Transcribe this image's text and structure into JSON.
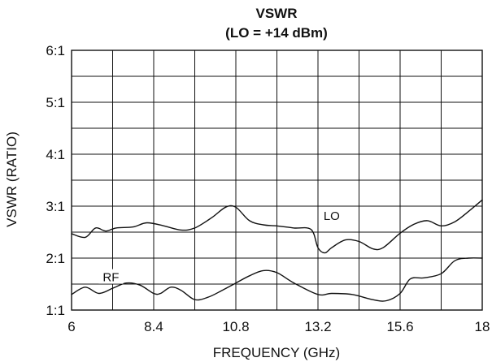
{
  "chart_data": {
    "type": "line",
    "title": [
      "VSWR",
      "(LO = +14 dBm)"
    ],
    "xlabel": "FREQUENCY (GHz)",
    "ylabel": "VSWR (RATIO)",
    "xlim": [
      6,
      18
    ],
    "ylim": [
      1,
      6
    ],
    "x_ticks": [
      6,
      7.2,
      8.4,
      9.6,
      10.8,
      12,
      13.2,
      14.4,
      15.6,
      16.8,
      18
    ],
    "x_tick_labels": [
      {
        "value": 6,
        "label": "6"
      },
      {
        "value": 8.4,
        "label": "8.4"
      },
      {
        "value": 10.8,
        "label": "10.8"
      },
      {
        "value": 13.2,
        "label": "13.2"
      },
      {
        "value": 15.6,
        "label": "15.6"
      },
      {
        "value": 18,
        "label": "18"
      }
    ],
    "y_ticks": [
      1,
      1.5,
      2,
      2.5,
      3,
      3.5,
      4,
      4.5,
      5,
      5.5,
      6
    ],
    "y_tick_labels": [
      {
        "value": 1,
        "label": "1:1"
      },
      {
        "value": 2,
        "label": "2:1"
      },
      {
        "value": 3,
        "label": "3:1"
      },
      {
        "value": 4,
        "label": "4:1"
      },
      {
        "value": 5,
        "label": "5:1"
      },
      {
        "value": 6,
        "label": "6:1"
      }
    ],
    "grid": true,
    "series": [
      {
        "name": "LO",
        "label_at": [
          13.6,
          2.78
        ],
        "points": [
          [
            6,
            2.47
          ],
          [
            6.4,
            2.4
          ],
          [
            6.7,
            2.58
          ],
          [
            7,
            2.52
          ],
          [
            7.3,
            2.58
          ],
          [
            7.8,
            2.6
          ],
          [
            8.2,
            2.68
          ],
          [
            8.7,
            2.62
          ],
          [
            9.2,
            2.54
          ],
          [
            9.6,
            2.58
          ],
          [
            10.1,
            2.78
          ],
          [
            10.5,
            2.98
          ],
          [
            10.8,
            2.98
          ],
          [
            11.2,
            2.72
          ],
          [
            11.6,
            2.64
          ],
          [
            12,
            2.62
          ],
          [
            12.5,
            2.58
          ],
          [
            13,
            2.55
          ],
          [
            13.2,
            2.2
          ],
          [
            13.4,
            2.1
          ],
          [
            13.6,
            2.2
          ],
          [
            14,
            2.35
          ],
          [
            14.4,
            2.32
          ],
          [
            14.8,
            2.18
          ],
          [
            15.1,
            2.2
          ],
          [
            15.6,
            2.48
          ],
          [
            16,
            2.65
          ],
          [
            16.4,
            2.72
          ],
          [
            16.8,
            2.62
          ],
          [
            17.2,
            2.7
          ],
          [
            17.6,
            2.9
          ],
          [
            18,
            3.12
          ]
        ]
      },
      {
        "name": "RF",
        "label_at": [
          7.15,
          1.6
        ],
        "points": [
          [
            6,
            1.3
          ],
          [
            6.4,
            1.44
          ],
          [
            6.8,
            1.32
          ],
          [
            7.2,
            1.42
          ],
          [
            7.6,
            1.52
          ],
          [
            8,
            1.48
          ],
          [
            8.4,
            1.32
          ],
          [
            8.6,
            1.32
          ],
          [
            8.9,
            1.44
          ],
          [
            9.2,
            1.38
          ],
          [
            9.6,
            1.2
          ],
          [
            10,
            1.25
          ],
          [
            10.4,
            1.38
          ],
          [
            10.8,
            1.52
          ],
          [
            11.2,
            1.66
          ],
          [
            11.6,
            1.76
          ],
          [
            12,
            1.72
          ],
          [
            12.5,
            1.52
          ],
          [
            13.2,
            1.3
          ],
          [
            13.6,
            1.32
          ],
          [
            14.2,
            1.3
          ],
          [
            14.8,
            1.2
          ],
          [
            15.2,
            1.18
          ],
          [
            15.6,
            1.32
          ],
          [
            15.9,
            1.6
          ],
          [
            16.3,
            1.62
          ],
          [
            16.8,
            1.7
          ],
          [
            17.2,
            1.95
          ],
          [
            17.6,
            2.0
          ],
          [
            18,
            2.0
          ]
        ]
      }
    ]
  }
}
